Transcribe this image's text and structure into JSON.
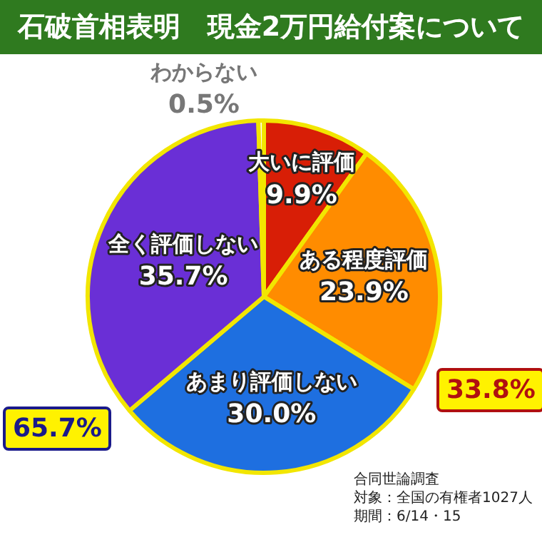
{
  "chart_data": {
    "type": "pie",
    "title": "石破首相表明　現金2万円給付案について",
    "categories": [
      "大いに評価",
      "ある程度評価",
      "あまり評価しない",
      "全く評価しない",
      "わからない"
    ],
    "values": [
      9.9,
      23.9,
      30.0,
      35.7,
      0.5
    ],
    "value_labels": [
      "9.9%",
      "23.9%",
      "30.0%",
      "35.7%",
      "0.5%"
    ],
    "colors": [
      "#d81e06",
      "#ff8c00",
      "#1e6fe0",
      "#6a2fd6",
      "#ffffff"
    ],
    "legend": false,
    "annotations": [
      "33.8%",
      "65.7%",
      "合同世論調査",
      "対象：全国の有権者1027人",
      "期間：6/14・15"
    ]
  }
}
